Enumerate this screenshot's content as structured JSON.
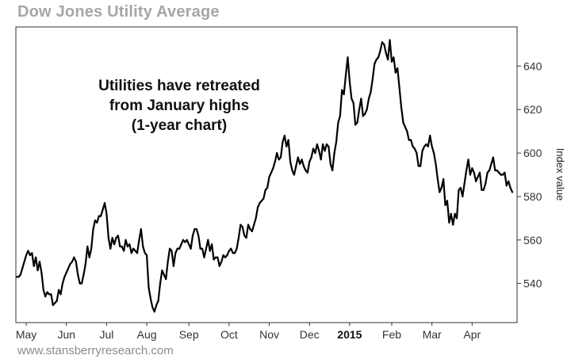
{
  "chart_data": {
    "type": "line",
    "title": "Dow Jones Utility Average",
    "ylabel": "Index value",
    "xlabel": "",
    "ylim": [
      522,
      658
    ],
    "yticks": [
      540,
      560,
      580,
      600,
      620,
      640
    ],
    "annotation": [
      "Utilities have retreated",
      "from January highs",
      "(1-year chart)"
    ],
    "x_ticks": [
      {
        "label": "May",
        "index": 5,
        "bold": false
      },
      {
        "label": "Jun",
        "index": 26,
        "bold": false
      },
      {
        "label": "Jul",
        "index": 47,
        "bold": false
      },
      {
        "label": "Aug",
        "index": 68,
        "bold": false
      },
      {
        "label": "Sep",
        "index": 90,
        "bold": false
      },
      {
        "label": "Oct",
        "index": 111,
        "bold": false
      },
      {
        "label": "Nov",
        "index": 132,
        "bold": false
      },
      {
        "label": "Dec",
        "index": 153,
        "bold": false
      },
      {
        "label": "2015",
        "index": 174,
        "bold": true
      },
      {
        "label": "Feb",
        "index": 196,
        "bold": false
      },
      {
        "label": "Mar",
        "index": 217,
        "bold": false
      },
      {
        "label": "Apr",
        "index": 238,
        "bold": false
      }
    ],
    "series": [
      {
        "name": "Dow Jones Utility Average",
        "values": [
          543,
          543,
          544,
          547,
          550,
          553,
          555,
          553,
          554,
          548,
          552,
          546,
          550,
          545,
          537,
          534,
          536,
          535,
          535,
          530,
          531,
          532,
          537,
          535,
          540,
          543,
          545,
          547,
          549,
          550,
          552,
          550,
          544,
          540,
          540,
          544,
          549,
          557,
          552,
          556,
          565,
          569,
          568,
          571,
          571,
          574,
          577,
          572,
          561,
          556,
          561,
          558,
          561,
          562,
          557,
          557,
          555,
          560,
          557,
          558,
          554,
          556,
          555,
          554,
          560,
          565,
          557,
          554,
          553,
          538,
          533,
          529,
          527,
          530,
          532,
          540,
          546,
          544,
          542,
          550,
          556,
          555,
          548,
          554,
          556,
          556,
          558,
          560,
          559,
          560,
          558,
          556,
          562,
          565,
          565,
          562,
          556,
          556,
          552,
          556,
          560,
          555,
          558,
          551,
          552,
          552,
          548,
          550,
          553,
          552,
          553,
          555,
          556,
          554,
          554,
          556,
          561,
          567,
          566,
          562,
          561,
          567,
          565,
          564,
          567,
          570,
          575,
          577,
          578,
          579,
          583,
          584,
          589,
          591,
          593,
          596,
          600,
          597,
          598,
          605,
          608,
          603,
          606,
          596,
          592,
          590,
          594,
          598,
          595,
          597,
          594,
          592,
          591,
          596,
          598,
          602,
          600,
          604,
          601,
          597,
          604,
          601,
          604,
          603,
          595,
          592,
          600,
          605,
          614,
          617,
          629,
          627,
          636,
          644,
          633,
          625,
          623,
          613,
          614,
          620,
          625,
          617,
          618,
          620,
          625,
          628,
          634,
          641,
          643,
          644,
          647,
          651,
          650,
          646,
          643,
          652,
          642,
          644,
          637,
          639,
          630,
          621,
          614,
          612,
          610,
          606,
          606,
          603,
          602,
          600,
          594,
          594,
          601,
          603,
          604,
          603,
          608,
          603,
          600,
          595,
          588,
          582,
          584,
          588,
          576,
          578,
          568,
          572,
          567,
          572,
          570,
          583,
          584,
          580,
          586,
          592,
          597,
          590,
          593,
          591,
          587,
          589,
          591,
          583,
          583,
          586,
          591,
          592,
          595,
          598,
          592,
          592,
          591,
          590,
          590,
          591,
          585,
          587,
          584,
          582
        ]
      }
    ]
  },
  "footer_text": "www.stansberryresearch.com"
}
